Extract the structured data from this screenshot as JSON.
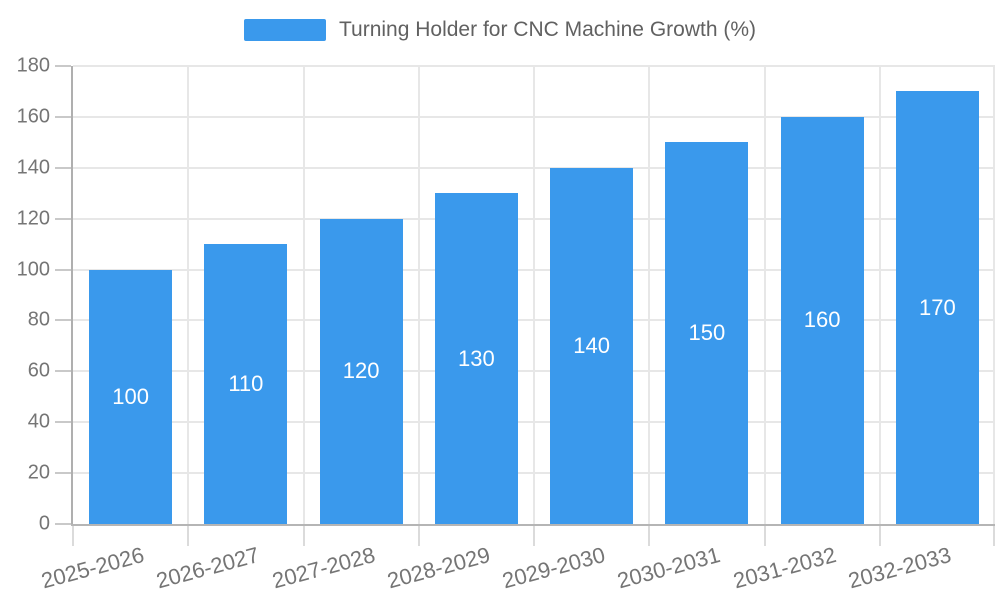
{
  "legend": {
    "label": "Turning Holder for CNC Machine Growth (%)"
  },
  "chart_data": {
    "type": "bar",
    "title": "Turning Holder for CNC Machine Growth (%)",
    "series_name": "Turning Holder for CNC Machine Growth (%)",
    "categories": [
      "2025-2026",
      "2026-2027",
      "2027-2028",
      "2028-2029",
      "2029-2030",
      "2030-2031",
      "2031-2032",
      "2032-2033"
    ],
    "values": [
      100,
      110,
      120,
      130,
      140,
      150,
      160,
      170
    ],
    "value_labels": [
      "100",
      "110",
      "120",
      "130",
      "140",
      "150",
      "160",
      "170"
    ],
    "y_ticks": [
      0,
      20,
      40,
      60,
      80,
      100,
      120,
      140,
      160,
      180
    ],
    "ylim": [
      0,
      180
    ],
    "xlabel": "",
    "ylabel": "",
    "grid": true,
    "legend_position": "top",
    "x_label_rotation_deg": -15,
    "colors": {
      "bar": "#3A99EC",
      "value_label": "#FFFFFF",
      "axis_line": "#B5B5B5",
      "gridline": "#E7E7E7",
      "axis_text": "#757575",
      "legend_text": "#616161"
    }
  }
}
